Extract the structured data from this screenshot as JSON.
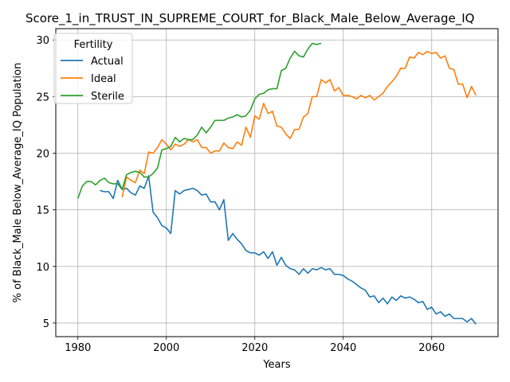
{
  "chart_data": {
    "type": "line",
    "title": "Score_1_in_TRUST_IN_SUPREME_COURT_for_Black_Male_Below_Average_IQ",
    "xlabel": "Years",
    "ylabel": "% of Black_Male Below_Average_IQ Population",
    "xlim": [
      1975,
      2075
    ],
    "ylim": [
      3.8,
      31
    ],
    "xticks": [
      1980,
      2000,
      2020,
      2040,
      2060
    ],
    "yticks": [
      5,
      10,
      15,
      20,
      25,
      30
    ],
    "grid": true,
    "legend": {
      "title": "Fertility",
      "placement": "top-left"
    },
    "series": [
      {
        "name": "Actual",
        "color": "#1f77b4",
        "x": [
          1985,
          1986,
          1987,
          1988,
          1989,
          1990,
          1991,
          1992,
          1993,
          1994,
          1995,
          1996,
          1997,
          1998,
          1999,
          2000,
          2001,
          2002,
          2003,
          2004,
          2005,
          2006,
          2007,
          2008,
          2009,
          2010,
          2011,
          2012,
          2013,
          2014,
          2015,
          2016,
          2017,
          2018,
          2019,
          2020,
          2021,
          2022,
          2023,
          2024,
          2025,
          2026,
          2027,
          2028,
          2029,
          2030,
          2031,
          2032,
          2033,
          2034,
          2035,
          2036,
          2037,
          2038,
          2039,
          2040,
          2041,
          2042,
          2043,
          2044,
          2045,
          2046,
          2047,
          2048,
          2049,
          2050,
          2051,
          2052,
          2053,
          2054,
          2055,
          2056,
          2057,
          2058,
          2059,
          2060,
          2061,
          2062,
          2063,
          2064,
          2065,
          2066,
          2067,
          2068,
          2069,
          2070
        ],
        "values": [
          16.7,
          16.6,
          16.6,
          16.0,
          17.6,
          16.8,
          16.9,
          16.5,
          16.3,
          17.1,
          16.9,
          18.0,
          14.8,
          14.3,
          13.6,
          13.4,
          12.9,
          16.7,
          16.4,
          16.7,
          16.8,
          16.9,
          16.7,
          16.3,
          16.4,
          15.7,
          15.7,
          15.0,
          15.9,
          12.3,
          12.9,
          12.4,
          12.0,
          11.4,
          11.2,
          11.2,
          11.0,
          11.3,
          10.7,
          11.3,
          10.1,
          10.8,
          10.1,
          9.8,
          9.7,
          9.3,
          9.8,
          9.4,
          9.8,
          9.7,
          9.9,
          9.7,
          9.8,
          9.3,
          9.3,
          9.2,
          8.9,
          8.7,
          8.4,
          8.1,
          7.9,
          7.3,
          7.4,
          6.8,
          7.2,
          6.7,
          7.3,
          7.0,
          7.4,
          7.2,
          7.3,
          7.1,
          6.8,
          6.9,
          6.2,
          6.4,
          5.8,
          6.0,
          5.6,
          5.8,
          5.4,
          5.4,
          5.4,
          5.1,
          5.4,
          4.9
        ]
      },
      {
        "name": "Ideal",
        "color": "#ff7f0e",
        "x": [
          1990,
          1991,
          1992,
          1993,
          1994,
          1995,
          1996,
          1997,
          1998,
          1999,
          2000,
          2001,
          2002,
          2003,
          2004,
          2005,
          2006,
          2007,
          2008,
          2009,
          2010,
          2011,
          2012,
          2013,
          2014,
          2015,
          2016,
          2017,
          2018,
          2019,
          2020,
          2021,
          2022,
          2023,
          2024,
          2025,
          2026,
          2027,
          2028,
          2029,
          2030,
          2031,
          2032,
          2033,
          2034,
          2035,
          2036,
          2037,
          2038,
          2039,
          2040,
          2041,
          2042,
          2043,
          2044,
          2045,
          2046,
          2047,
          2048,
          2049,
          2050,
          2051,
          2052,
          2053,
          2054,
          2055,
          2056,
          2057,
          2058,
          2059,
          2060,
          2061,
          2062,
          2063,
          2064,
          2065,
          2066,
          2067,
          2068,
          2069,
          2070
        ],
        "values": [
          16.1,
          17.9,
          17.6,
          17.4,
          18.5,
          18.2,
          20.1,
          20.0,
          20.5,
          21.2,
          20.8,
          20.3,
          20.8,
          20.6,
          20.8,
          21.2,
          21.0,
          21.2,
          20.5,
          20.5,
          20.0,
          20.2,
          20.2,
          20.9,
          20.5,
          20.4,
          21.0,
          20.7,
          22.3,
          21.4,
          23.3,
          23.0,
          24.4,
          23.5,
          23.7,
          22.4,
          22.3,
          21.7,
          21.3,
          22.1,
          22.1,
          23.2,
          23.5,
          25.0,
          25.0,
          26.5,
          26.2,
          26.5,
          25.5,
          25.8,
          25.1,
          25.1,
          25.0,
          24.8,
          25.1,
          24.9,
          25.1,
          24.7,
          25.0,
          25.3,
          25.9,
          26.3,
          26.8,
          27.5,
          27.5,
          28.5,
          28.4,
          28.9,
          28.7,
          29.0,
          28.8,
          28.9,
          28.4,
          28.6,
          27.5,
          27.4,
          26.1,
          26.1,
          24.9,
          25.9,
          25.1
        ]
      },
      {
        "name": "Sterile",
        "color": "#2ca02c",
        "x": [
          1980,
          1981,
          1982,
          1983,
          1984,
          1985,
          1986,
          1987,
          1988,
          1989,
          1990,
          1991,
          1992,
          1993,
          1994,
          1995,
          1996,
          1997,
          1998,
          1999,
          2000,
          2001,
          2002,
          2003,
          2004,
          2005,
          2006,
          2007,
          2008,
          2009,
          2010,
          2011,
          2012,
          2013,
          2014,
          2015,
          2016,
          2017,
          2018,
          2019,
          2020,
          2021,
          2022,
          2023,
          2024,
          2025,
          2026,
          2027,
          2028,
          2029,
          2030,
          2031,
          2032,
          2033,
          2034,
          2035
        ],
        "values": [
          16.0,
          17.1,
          17.5,
          17.5,
          17.2,
          17.6,
          17.8,
          17.4,
          17.3,
          17.3,
          16.8,
          18.1,
          18.3,
          18.4,
          18.3,
          17.9,
          17.9,
          18.2,
          18.7,
          20.3,
          20.4,
          20.6,
          21.4,
          21.0,
          21.3,
          21.2,
          21.2,
          21.6,
          22.3,
          21.8,
          22.3,
          22.9,
          22.9,
          22.9,
          23.1,
          23.2,
          23.4,
          23.2,
          23.3,
          23.8,
          24.8,
          25.2,
          25.3,
          25.6,
          25.7,
          25.7,
          27.3,
          27.5,
          28.4,
          29.0,
          28.6,
          28.5,
          29.2,
          29.7,
          29.6,
          29.7
        ]
      }
    ]
  }
}
